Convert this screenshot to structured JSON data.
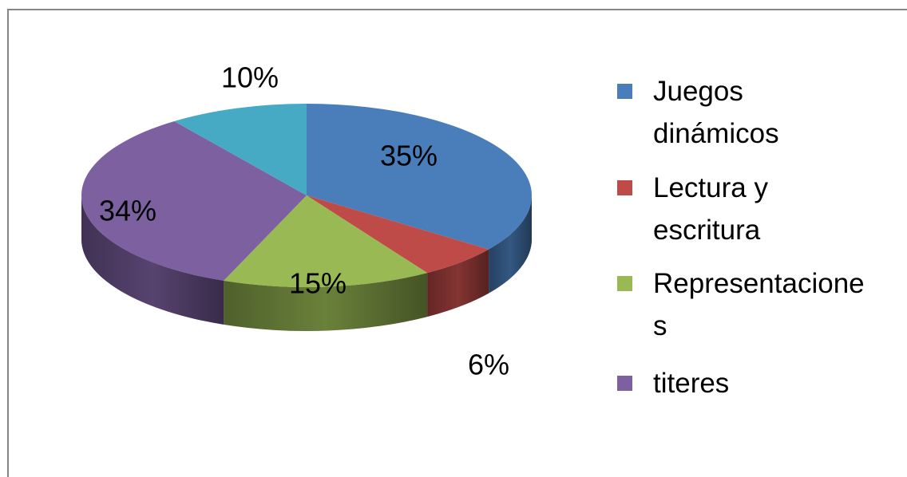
{
  "chart_data": {
    "type": "pie",
    "categories": [
      "Juegos dinámicos",
      "Lectura y escritura",
      "Representaciones",
      "titeres",
      null
    ],
    "values": [
      35,
      6,
      15,
      34,
      10
    ],
    "value_labels": [
      "35%",
      "6%",
      "15%",
      "34%",
      "10%"
    ],
    "colors": [
      "#4a7ebb",
      "#be4b48",
      "#98b954",
      "#7d60a0",
      "#46aac5"
    ],
    "legend": "right"
  }
}
